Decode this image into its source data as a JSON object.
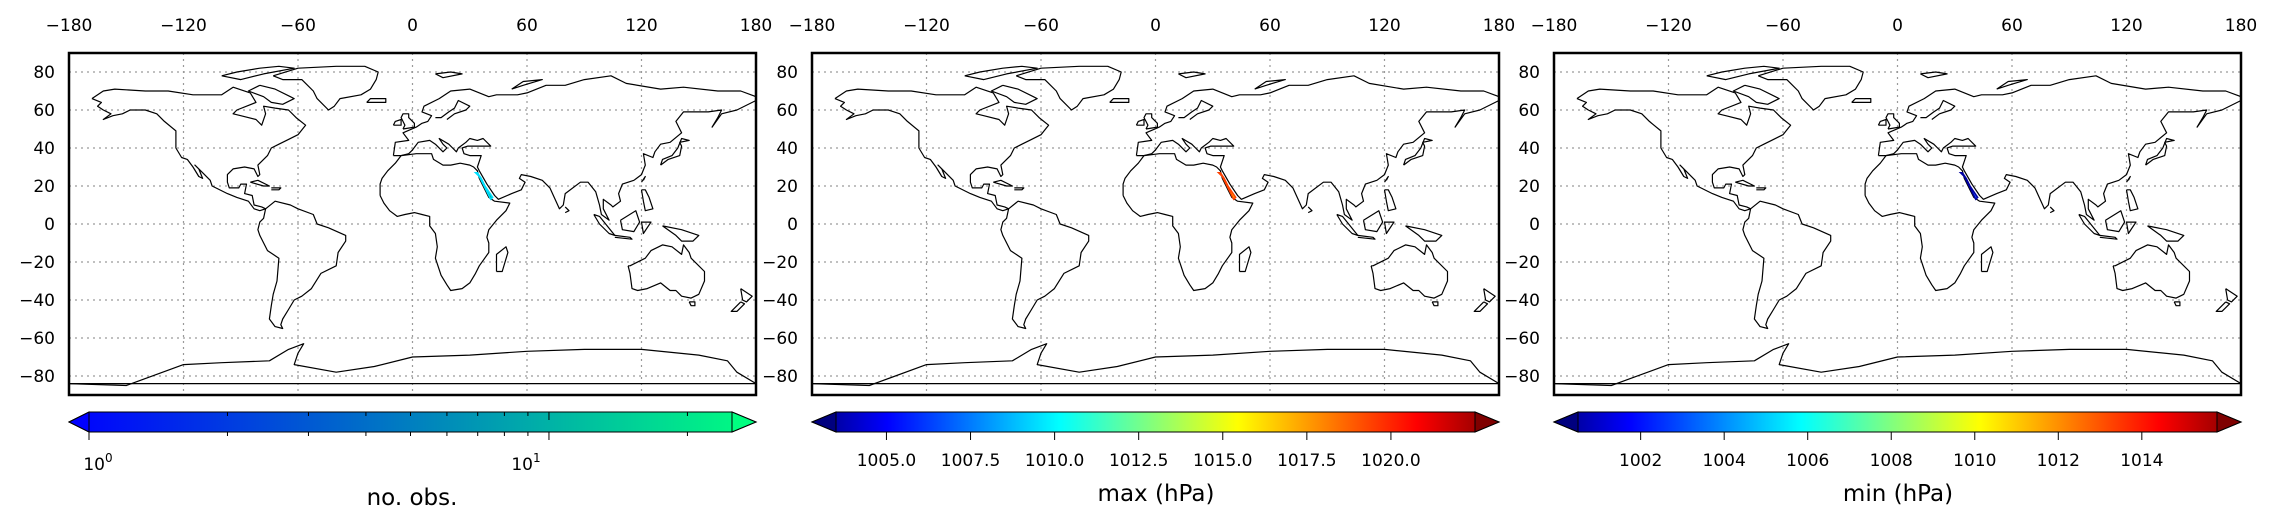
{
  "figure": {
    "panels": [
      {
        "id": "no-obs",
        "colorbar": {
          "label": "no. obs.",
          "scale": "log",
          "colormap": "winter",
          "extend": "max",
          "range": [
            1,
            25
          ],
          "tick_labels": [
            {
              "base": "10",
              "exp": "0",
              "value": 1
            },
            {
              "base": "10",
              "exp": "1",
              "value": 10
            }
          ]
        },
        "colors": [
          "#0000ff",
          "#00ff80"
        ]
      },
      {
        "id": "max-hpa",
        "colorbar": {
          "label": "max (hPa)",
          "scale": "linear",
          "colormap": "jet",
          "extend": "both",
          "range": [
            1003.5,
            1022.5
          ],
          "tick_labels": [
            {
              "text": "1005.0",
              "value": 1005.0
            },
            {
              "text": "1007.5",
              "value": 1007.5
            },
            {
              "text": "1010.0",
              "value": 1010.0
            },
            {
              "text": "1012.5",
              "value": 1012.5
            },
            {
              "text": "1015.0",
              "value": 1015.0
            },
            {
              "text": "1017.5",
              "value": 1017.5
            },
            {
              "text": "1020.0",
              "value": 1020.0
            }
          ]
        },
        "colors": [
          "#00007f",
          "#0000ff",
          "#00ffff",
          "#ffff00",
          "#ff0000",
          "#7f0000"
        ]
      },
      {
        "id": "min-hpa",
        "colorbar": {
          "label": "min (hPa)",
          "scale": "linear",
          "colormap": "jet",
          "extend": "both",
          "range": [
            1000.5,
            1015.8
          ],
          "tick_labels": [
            {
              "text": "1002",
              "value": 1002
            },
            {
              "text": "1004",
              "value": 1004
            },
            {
              "text": "1006",
              "value": 1006
            },
            {
              "text": "1008",
              "value": 1008
            },
            {
              "text": "1010",
              "value": 1010
            },
            {
              "text": "1012",
              "value": 1012
            },
            {
              "text": "1014",
              "value": 1014
            }
          ]
        },
        "colors": [
          "#00007f",
          "#0000ff",
          "#00ffff",
          "#ffff00",
          "#ff0000",
          "#7f0000"
        ]
      }
    ],
    "lon_ticks": [
      "−180",
      "−120",
      "−60",
      "0",
      "60",
      "120",
      "180"
    ],
    "lon_values": [
      -180,
      -120,
      -60,
      0,
      60,
      120,
      180
    ],
    "lat_ticks": [
      "80",
      "60",
      "40",
      "20",
      "0",
      "−20",
      "−40",
      "−60",
      "−80"
    ],
    "lat_values": [
      80,
      60,
      40,
      20,
      0,
      -20,
      -40,
      -60,
      -80
    ],
    "lat_range": [
      -90,
      90
    ],
    "lon_range": [
      -180,
      180
    ],
    "observation_region": "Red Sea",
    "grid": true
  }
}
